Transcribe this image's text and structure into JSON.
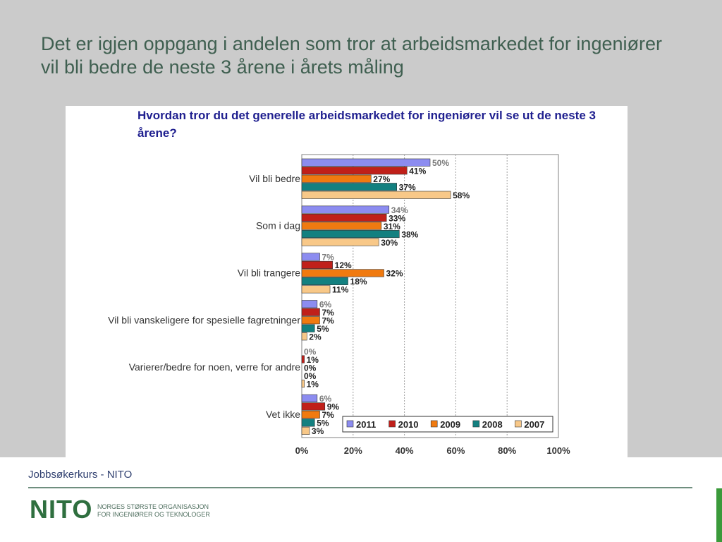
{
  "slide": {
    "title": "Det er igjen oppgang i andelen som tror at arbeidsmarkedet for ingeniører vil bli bedre de neste 3 årene i årets måling"
  },
  "footer": {
    "text": "Jobbsøkerkurs - NITO",
    "logo_word": "NITO",
    "logo_tagline_line1": "NORGES STØRSTE ORGANISASJON",
    "logo_tagline_line2": "FOR INGENIØRER OG TEKNOLOGER"
  },
  "colors": {
    "background": "#cbcbcb",
    "title_text": "#3f5f50",
    "chart_title": "#1f1f8f",
    "brand_green": "#2f6f3f"
  },
  "chart_data": {
    "type": "bar",
    "orientation": "horizontal",
    "title": "Hvordan tror du det generelle arbeidsmarkedet for ingeniører vil se ut de neste 3 årene?",
    "categories": [
      "Vil bli bedre",
      "Som i dag",
      "Vil bli trangere",
      "Vil bli vanskeligere for spesielle fagretninger",
      "Varierer/bedre for noen, verre for andre",
      "Vet ikke"
    ],
    "series": [
      {
        "name": "2011",
        "color": "#8c8cf0",
        "values": [
          50,
          34,
          7,
          6,
          0,
          6
        ]
      },
      {
        "name": "2010",
        "color": "#c0201a",
        "values": [
          41,
          33,
          12,
          7,
          1,
          9
        ]
      },
      {
        "name": "2009",
        "color": "#f07a10",
        "values": [
          27,
          31,
          32,
          7,
          0,
          7
        ]
      },
      {
        "name": "2008",
        "color": "#138080",
        "values": [
          37,
          38,
          18,
          5,
          0,
          5
        ]
      },
      {
        "name": "2007",
        "color": "#f8c888",
        "values": [
          58,
          30,
          11,
          2,
          1,
          3
        ]
      }
    ],
    "xlim": [
      0,
      100
    ],
    "xticks": [
      "0%",
      "20%",
      "40%",
      "60%",
      "80%",
      "100%"
    ],
    "value_suffix": "%",
    "grid": true,
    "legend_position": "bottom-right"
  }
}
